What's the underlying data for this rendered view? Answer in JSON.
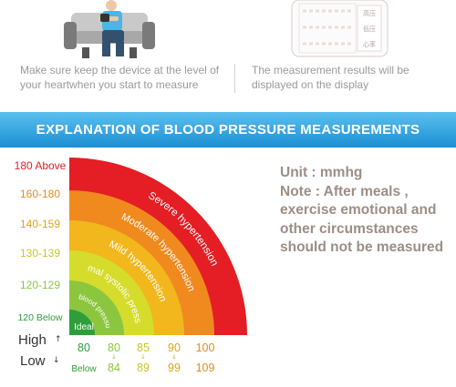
{
  "instructions": {
    "left_caption": "Make sure keep the device at the level of your heartwhen you start to measure",
    "right_caption": "The measurement results will be displayed on the display",
    "display_labels": [
      "高压",
      "低压",
      "心率"
    ]
  },
  "banner": {
    "title": "EXPLANATION OF BLOOD PRESSURE MEASUREMENTS"
  },
  "note": {
    "unit": "Unit : mmhg",
    "text": "Note : After meals , exercise emotional and other circumstances should not be measured"
  },
  "chart_data": {
    "type": "concentric-bands",
    "bands": [
      {
        "label": "Ideal",
        "y_label": "120 Below",
        "high": "80",
        "low": "Below",
        "color": "#2e9e3a",
        "y_label_color": "#2e9e3a"
      },
      {
        "label": "Normal blood pressure value",
        "y_label": "120-129",
        "high": "80",
        "low": "84",
        "color": "#8cc63f",
        "y_label_color": "#8cc63f"
      },
      {
        "label": "Normal systolic pressure",
        "y_label": "130-139",
        "high": "85",
        "low": "89",
        "color": "#d5dc2c",
        "y_label_color": "#c7c62a"
      },
      {
        "label": "Mild hypertension",
        "y_label": "140-159",
        "high": "90",
        "low": "99",
        "color": "#f2b71c",
        "y_label_color": "#e0a414"
      },
      {
        "label": "Moderate hypertension",
        "y_label": "160-180",
        "high": "100",
        "low": "109",
        "color": "#f08a1f",
        "y_label_color": "#e78a1e"
      },
      {
        "label": "Severe hypertension",
        "y_label": "180 Above",
        "high": "",
        "low": "",
        "color": "#e41e24",
        "y_label_color": "#e41e24"
      }
    ],
    "row_labels": {
      "high": "High",
      "low": "Low"
    },
    "arrows": {
      "up": "↑",
      "down": "↓"
    }
  }
}
